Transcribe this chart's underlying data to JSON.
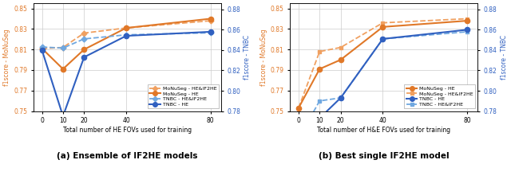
{
  "left_panel": {
    "x": [
      0,
      10,
      20,
      40,
      80
    ],
    "monuseg_he_if2he": [
      0.811,
      0.812,
      0.826,
      0.831,
      0.838
    ],
    "monuseg_he": [
      0.811,
      0.791,
      0.81,
      0.831,
      0.84
    ],
    "tnbc_he_if2he": [
      0.843,
      0.842,
      0.851,
      0.855,
      0.857
    ],
    "tnbc_he": [
      0.84,
      0.775,
      0.833,
      0.854,
      0.858
    ],
    "ylim_left": [
      0.75,
      0.855
    ],
    "ylim_right": [
      0.78,
      0.886
    ],
    "yticks_left": [
      0.75,
      0.77,
      0.79,
      0.81,
      0.83,
      0.85
    ],
    "yticks_right": [
      0.78,
      0.8,
      0.82,
      0.84,
      0.86,
      0.88
    ],
    "xticks": [
      0,
      10,
      20,
      40,
      80
    ],
    "xticklabels": [
      "0",
      "10",
      "20",
      "40",
      "80"
    ],
    "xlabel": "Total number of HE FOVs used for training",
    "ylabel_left": "f1score - MoNuSeg",
    "ylabel_right": "f1score - TNBC",
    "caption": "(a) Ensemble of IF2HE models",
    "legend": [
      "MoNuSeg - HE&IF2HE",
      "MoNuSeg - HE",
      "TNBC - HE&IF2HE",
      "TNBC - HE"
    ]
  },
  "right_panel": {
    "x": [
      0,
      10,
      20,
      40,
      80
    ],
    "monuseg_he": [
      0.753,
      0.791,
      0.8,
      0.832,
      0.838
    ],
    "monuseg_he_if2he": [
      0.753,
      0.808,
      0.812,
      0.836,
      0.84
    ],
    "tnbc_he": [
      0.753,
      0.773,
      0.793,
      0.851,
      0.86
    ],
    "tnbc_he_if2he": [
      0.753,
      0.79,
      0.793,
      0.851,
      0.858
    ],
    "ylim_left": [
      0.75,
      0.855
    ],
    "ylim_right": [
      0.78,
      0.886
    ],
    "yticks_left": [
      0.75,
      0.77,
      0.79,
      0.81,
      0.83,
      0.85
    ],
    "yticks_right": [
      0.78,
      0.8,
      0.82,
      0.84,
      0.86,
      0.88
    ],
    "xticks": [
      0,
      10,
      20,
      40,
      80
    ],
    "xticklabels": [
      "0",
      "10",
      "20",
      "40",
      "80"
    ],
    "xlabel": "Total number of H&E FOVs used for training",
    "ylabel_left": "f1score - MoNuSeg",
    "ylabel_right": "f1score - TNBC",
    "caption": "(b) Best single IF2HE model",
    "legend": [
      "MoNuSeg - HE",
      "MoNuSeg - HE&IF2HE",
      "TNBC - HE",
      "TNBC - HE&IF2HE"
    ]
  },
  "orange_solid_color": "#E07828",
  "orange_dashed_color": "#F0A060",
  "blue_solid_color": "#3060C0",
  "blue_dashed_color": "#70A8E0"
}
